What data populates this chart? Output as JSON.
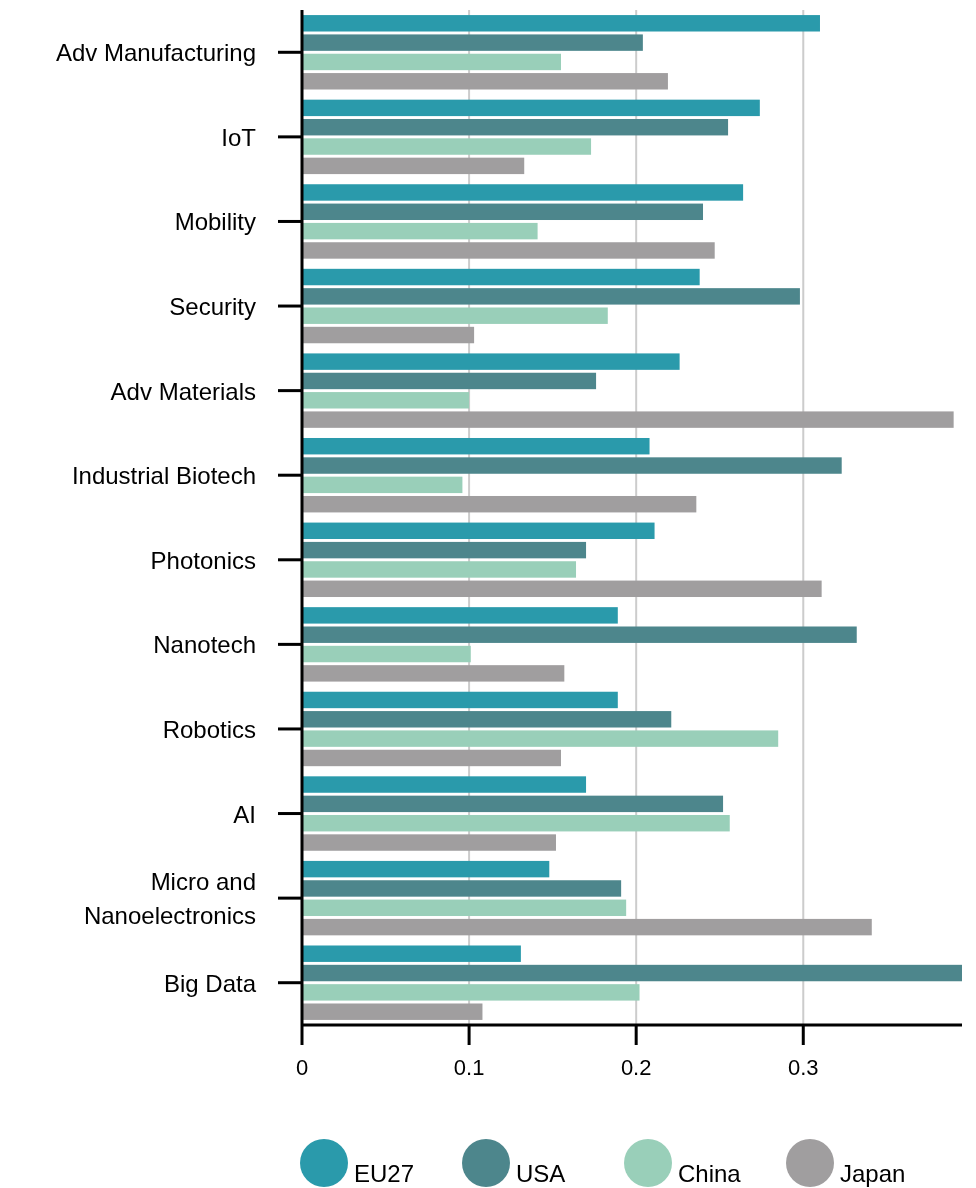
{
  "chart_data": {
    "type": "bar",
    "orientation": "horizontal",
    "categories": [
      "Adv Manufacturing",
      "IoT",
      "Mobility",
      "Security",
      "Adv Materials",
      "Industrial Biotech",
      "Photonics",
      "Nanotech",
      "Robotics",
      "AI",
      "Micro and Nanoelectronics",
      "Big Data"
    ],
    "series": [
      {
        "name": "EU27",
        "color": "#2a9aab",
        "values": [
          0.31,
          0.274,
          0.264,
          0.238,
          0.226,
          0.208,
          0.211,
          0.189,
          0.189,
          0.17,
          0.148,
          0.131
        ]
      },
      {
        "name": "USA",
        "color": "#4d868c",
        "values": [
          0.204,
          0.255,
          0.24,
          0.298,
          0.176,
          0.323,
          0.17,
          0.332,
          0.221,
          0.252,
          0.191,
          0.395
        ]
      },
      {
        "name": "China",
        "color": "#99cfb9",
        "values": [
          0.155,
          0.173,
          0.141,
          0.183,
          0.1,
          0.096,
          0.164,
          0.101,
          0.285,
          0.256,
          0.194,
          0.202
        ]
      },
      {
        "name": "Japan",
        "color": "#a09e9f",
        "values": [
          0.219,
          0.133,
          0.247,
          0.103,
          0.39,
          0.236,
          0.311,
          0.157,
          0.155,
          0.152,
          0.341,
          0.108
        ]
      }
    ],
    "xlim": [
      0,
      0.395
    ],
    "xticks": [
      0,
      0.1,
      0.2,
      0.3
    ],
    "grid": "x",
    "legend": "bottom"
  }
}
